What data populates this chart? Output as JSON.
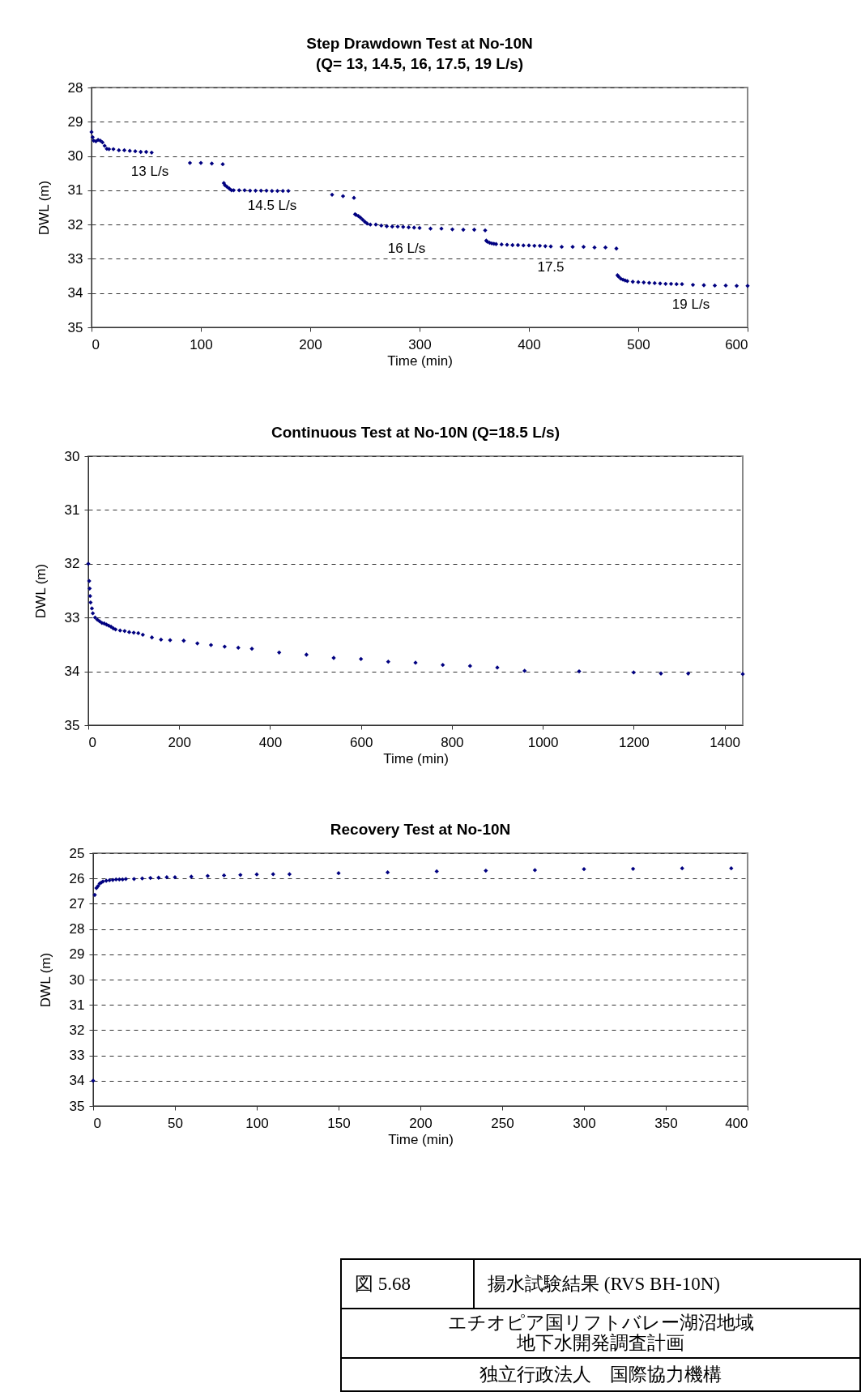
{
  "chart_data": [
    {
      "type": "scatter",
      "title": "Step Drawdown Test at No-10N",
      "subtitle": "(Q= 13,  14.5, 16, 17.5, 19 L/s)",
      "xlabel": "Time (min)",
      "ylabel": "DWL (m)",
      "color": "#000080",
      "marker": "diamond",
      "grid": "y",
      "xlim": [
        0,
        600
      ],
      "xticks": [
        0,
        100,
        200,
        300,
        400,
        500,
        600
      ],
      "ylim": [
        35,
        28
      ],
      "yticks": [
        28,
        29,
        30,
        31,
        32,
        33,
        34,
        35
      ],
      "x": [
        0,
        1,
        2,
        4,
        6,
        8,
        10,
        12,
        14,
        16,
        20,
        25,
        30,
        35,
        40,
        45,
        50,
        55,
        90,
        100,
        110,
        120,
        121,
        122,
        124,
        126,
        128,
        130,
        135,
        140,
        145,
        150,
        155,
        160,
        165,
        170,
        175,
        180,
        220,
        230,
        240,
        241,
        242,
        244,
        246,
        248,
        250,
        252,
        255,
        260,
        265,
        270,
        275,
        280,
        285,
        290,
        295,
        300,
        310,
        320,
        330,
        340,
        350,
        360,
        361,
        362,
        364,
        366,
        368,
        370,
        375,
        380,
        385,
        390,
        395,
        400,
        405,
        410,
        415,
        420,
        430,
        440,
        450,
        460,
        470,
        480,
        481,
        482,
        484,
        486,
        488,
        490,
        495,
        500,
        505,
        510,
        515,
        520,
        525,
        530,
        535,
        540,
        550,
        560,
        570,
        580,
        590,
        600
      ],
      "values": [
        29.3,
        29.45,
        29.55,
        29.57,
        29.53,
        29.55,
        29.6,
        29.7,
        29.79,
        29.8,
        29.8,
        29.83,
        29.83,
        29.85,
        29.86,
        29.88,
        29.88,
        29.9,
        30.2,
        30.2,
        30.22,
        30.24,
        30.79,
        30.85,
        30.9,
        30.95,
        31.0,
        31.0,
        31.0,
        31.0,
        31.01,
        31.01,
        31.01,
        31.01,
        31.02,
        31.02,
        31.02,
        31.02,
        31.13,
        31.17,
        31.22,
        31.7,
        31.72,
        31.75,
        31.8,
        31.86,
        31.92,
        31.97,
        32.0,
        32.0,
        32.03,
        32.05,
        32.06,
        32.06,
        32.07,
        32.08,
        32.09,
        32.1,
        32.12,
        32.12,
        32.14,
        32.15,
        32.15,
        32.17,
        32.47,
        32.5,
        32.53,
        32.55,
        32.56,
        32.57,
        32.58,
        32.59,
        32.6,
        32.6,
        32.61,
        32.61,
        32.62,
        32.62,
        32.63,
        32.64,
        32.65,
        32.65,
        32.65,
        32.67,
        32.67,
        32.7,
        33.48,
        33.52,
        33.58,
        33.61,
        33.63,
        33.65,
        33.67,
        33.68,
        33.69,
        33.7,
        33.71,
        33.72,
        33.73,
        33.73,
        33.74,
        33.74,
        33.76,
        33.77,
        33.78,
        33.78,
        33.79,
        33.79
      ],
      "annotations": [
        "13 L/s",
        "14.5 L/s",
        "16 L/s",
        "17.5",
        "19 L/s"
      ]
    },
    {
      "type": "scatter",
      "title": "Continuous Test  at No-10N (Q=18.5 L/s)",
      "xlabel": "Time (min)",
      "ylabel": "DWL (m)",
      "color": "#000080",
      "marker": "diamond",
      "grid": "y",
      "xlim": [
        0,
        1440
      ],
      "xticks": [
        0,
        200,
        400,
        600,
        800,
        1000,
        1200,
        1400
      ],
      "ylim": [
        35,
        30
      ],
      "yticks": [
        30,
        31,
        32,
        33,
        34,
        35
      ],
      "x": [
        0,
        2,
        3,
        4,
        5,
        8,
        10,
        15,
        20,
        25,
        30,
        35,
        40,
        45,
        50,
        55,
        60,
        70,
        80,
        90,
        100,
        110,
        120,
        140,
        160,
        180,
        210,
        240,
        270,
        300,
        330,
        360,
        420,
        480,
        540,
        600,
        660,
        720,
        780,
        840,
        900,
        960,
        1080,
        1200,
        1260,
        1320,
        1440
      ],
      "values": [
        32.0,
        32.32,
        32.46,
        32.6,
        32.72,
        32.83,
        32.92,
        33.0,
        33.04,
        33.07,
        33.1,
        33.11,
        33.13,
        33.15,
        33.17,
        33.2,
        33.22,
        33.24,
        33.25,
        33.27,
        33.28,
        33.29,
        33.32,
        33.37,
        33.41,
        33.42,
        33.43,
        33.48,
        33.51,
        33.54,
        33.56,
        33.58,
        33.65,
        33.69,
        33.75,
        33.77,
        33.82,
        33.84,
        33.88,
        33.9,
        33.93,
        33.99,
        34.0,
        34.02,
        34.04,
        34.04,
        34.05
      ]
    },
    {
      "type": "scatter",
      "title": "Recovery Test at No-10N",
      "xlabel": "Time (min)",
      "ylabel": "DWL (m)",
      "color": "#000080",
      "marker": "diamond",
      "grid": "y",
      "xlim": [
        0,
        400
      ],
      "xticks": [
        0,
        50,
        100,
        150,
        200,
        250,
        300,
        350,
        400
      ],
      "ylim": [
        35,
        25
      ],
      "yticks": [
        25,
        26,
        27,
        28,
        29,
        30,
        31,
        32,
        33,
        34,
        35
      ],
      "x": [
        0,
        1,
        2,
        3,
        4,
        5,
        6,
        8,
        10,
        12,
        14,
        16,
        18,
        20,
        25,
        30,
        35,
        40,
        45,
        50,
        60,
        70,
        80,
        90,
        100,
        110,
        120,
        150,
        180,
        210,
        240,
        270,
        300,
        330,
        360,
        390
      ],
      "values": [
        34.0,
        26.65,
        26.38,
        26.3,
        26.2,
        26.16,
        26.12,
        26.09,
        26.07,
        26.06,
        26.04,
        26.04,
        26.04,
        26.02,
        26.02,
        26.0,
        25.98,
        25.97,
        25.95,
        25.95,
        25.93,
        25.9,
        25.88,
        25.86,
        25.84,
        25.83,
        25.83,
        25.79,
        25.76,
        25.72,
        25.69,
        25.67,
        25.63,
        25.62,
        25.6,
        25.6
      ]
    },
    {
      "type": "other",
      "annotations": [
        "図  5.68",
        "揚水試験結果  (RVS BH-10N)",
        "エチオピア国リフトバレー湖沼地域",
        "地下水開発調査計画",
        "独立行政法人　国際協力機構"
      ]
    }
  ]
}
